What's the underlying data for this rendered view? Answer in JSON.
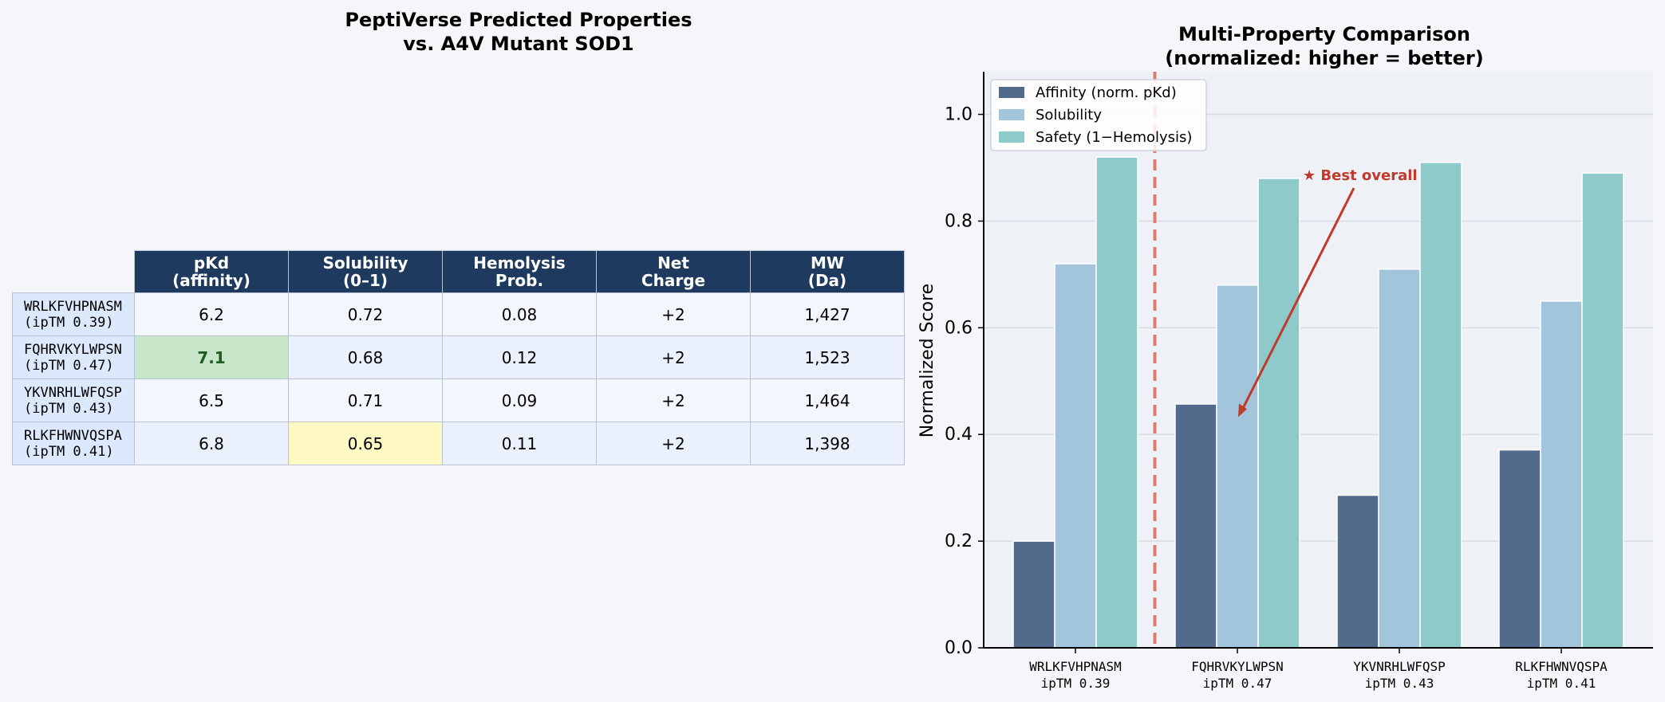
{
  "table_panel": {
    "title": "PeptiVerse Predicted Properties\nvs. A4V Mutant SOD1",
    "columns": [
      "pKd\n(affinity)",
      "Solubility\n(0–1)",
      "Hemolysis\nProb.",
      "Net\nCharge",
      "MW\n(Da)"
    ],
    "rows": [
      {
        "label": "WRLKFVHPNASM\n(ipTM 0.39)",
        "cells": [
          "6.2",
          "0.72",
          "0.08",
          "+2",
          "1,427"
        ]
      },
      {
        "label": "FQHRVKYLWPSN\n(ipTM 0.47)",
        "cells": [
          "7.1",
          "0.68",
          "0.12",
          "+2",
          "1,523"
        ]
      },
      {
        "label": "YKVNRHLWFQSP\n(ipTM 0.43)",
        "cells": [
          "6.5",
          "0.71",
          "0.09",
          "+2",
          "1,464"
        ]
      },
      {
        "label": "RLKFHWNVQSPA\n(ipTM 0.41)",
        "cells": [
          "6.8",
          "0.65",
          "0.11",
          "+2",
          "1,398"
        ]
      }
    ],
    "highlight_colors": {
      "best": "#c8e6c9",
      "lowest": "#fff9c4",
      "header": "#1e3a5f"
    }
  },
  "chart_data": {
    "type": "bar",
    "title": "Multi-Property Comparison\n(normalized: higher = better)",
    "ylabel": "Normalized Score",
    "xlabel": "",
    "ylim": [
      0,
      1.08
    ],
    "yticks": [
      "0.0",
      "0.2",
      "0.4",
      "0.6",
      "0.8",
      "1.0"
    ],
    "grid": true,
    "legend_position": "top-left",
    "categories": [
      {
        "name": "WRLKFVHPNASM",
        "sub": "ipTM 0.39"
      },
      {
        "name": "FQHRVKYLWPSN",
        "sub": "ipTM 0.47"
      },
      {
        "name": "YKVNRHLWFQSP",
        "sub": "ipTM 0.43"
      },
      {
        "name": "RLKFHWNVQSPA",
        "sub": "ipTM 0.41"
      }
    ],
    "series": [
      {
        "name": "Affinity (norm. pKd)",
        "color": "#526b8c",
        "values": [
          0.2,
          0.457,
          0.286,
          0.371
        ]
      },
      {
        "name": "Solubility",
        "color": "#a3c5db",
        "values": [
          0.72,
          0.68,
          0.71,
          0.65
        ]
      },
      {
        "name": "Safety (1−Hemolysis)",
        "color": "#8fcaca",
        "values": [
          0.92,
          0.88,
          0.91,
          0.89
        ]
      }
    ],
    "annotation": {
      "text": "★ Best overall",
      "target_category": 1,
      "target_value": 0.47,
      "color": "#c0392b"
    },
    "divider": {
      "color": "#e07b73",
      "style": "dashed"
    }
  }
}
